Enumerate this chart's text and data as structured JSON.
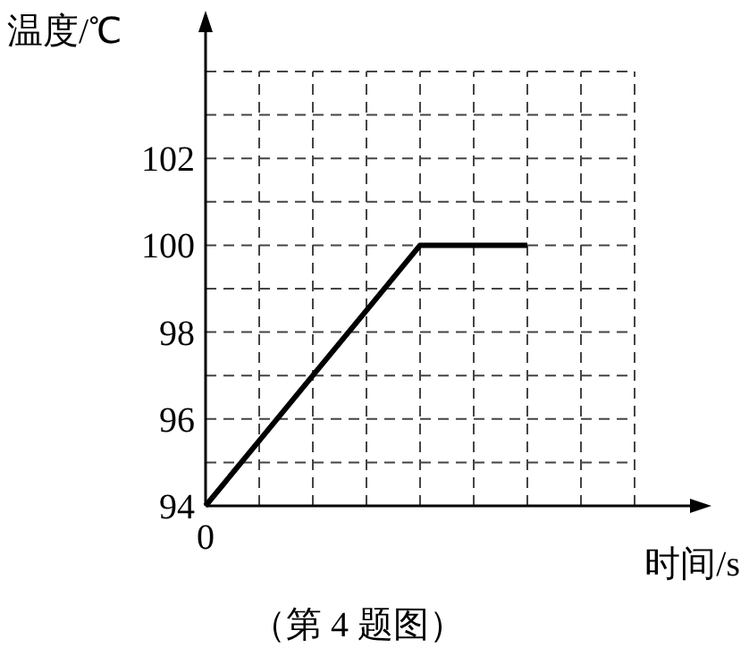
{
  "chart_data": {
    "type": "line",
    "xlabel": "时间/s",
    "ylabel": "温度/℃",
    "annotations": [
      "（第 4 题图）"
    ],
    "categories": [
      "0",
      null,
      null,
      null,
      null,
      null,
      null,
      null,
      null
    ],
    "values": [
      94,
      95.5,
      97,
      98.5,
      100,
      100,
      100,
      null,
      null
    ],
    "color": "#000000",
    "ylim": [
      94,
      104
    ],
    "yticks": [
      {
        "value": 94,
        "label": "94"
      },
      {
        "value": 95,
        "label": null
      },
      96,
      {
        "value": 97,
        "label": null
      },
      98,
      {
        "value": 99,
        "label": null
      },
      100,
      {
        "value": 101,
        "label": null
      },
      102,
      {
        "value": 103,
        "label": null
      },
      {
        "value": 104,
        "label": null
      }
    ],
    "grid": true,
    "line_style": "solid"
  }
}
